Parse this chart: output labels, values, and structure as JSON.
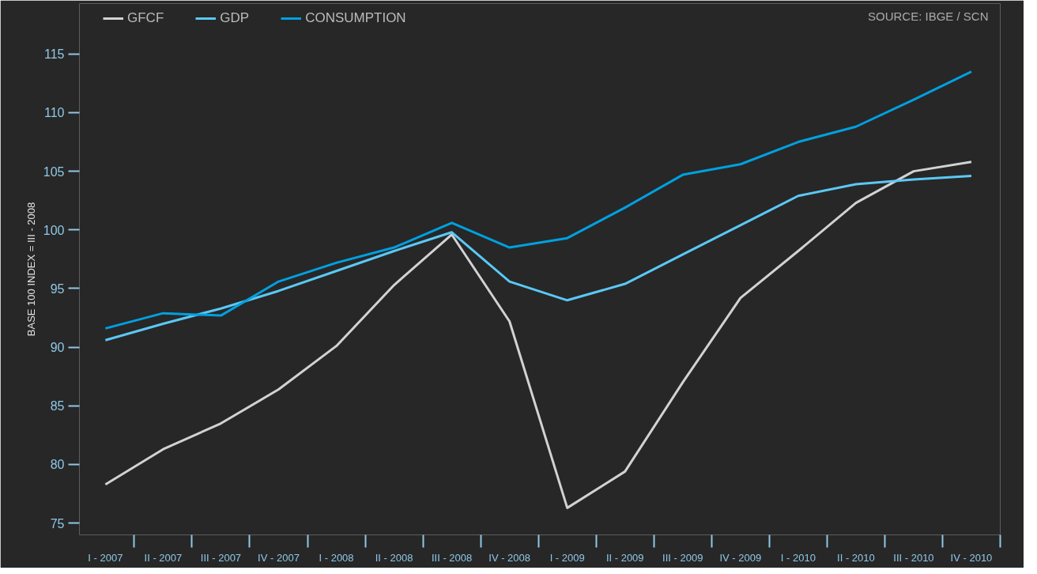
{
  "chart_data": {
    "type": "line",
    "ylabel": "BASE 100 INDEX = III - 2008",
    "annotations": [
      "SOURCE: IBGE / SCN"
    ],
    "categories": [
      "I - 2007",
      "II - 2007",
      "III - 2007",
      "IV - 2007",
      "I - 2008",
      "II - 2008",
      "III - 2008",
      "IV - 2008",
      "I - 2009",
      "II - 2009",
      "III - 2009",
      "IV - 2009",
      "I - 2010",
      "II - 2010",
      "III - 2010",
      "IV - 2010"
    ],
    "ylim": [
      74,
      119.3
    ],
    "yticks": [
      75,
      80,
      85,
      90,
      95,
      100,
      105,
      110,
      115
    ],
    "grid": false,
    "legend": "top left",
    "marker": "none",
    "line_style": "solid",
    "series": [
      {
        "name": "GFCF",
        "color": "#d1d2d4",
        "values": [
          78.3,
          81.3,
          83.5,
          86.4,
          90.1,
          95.3,
          99.6,
          92.2,
          76.3,
          79.4,
          87.0,
          94.2,
          98.2,
          102.3,
          105.0,
          105.8
        ]
      },
      {
        "name": "GDP",
        "color": "#5bc8f5",
        "values": [
          90.6,
          92.0,
          93.3,
          94.8,
          96.5,
          98.2,
          99.8,
          95.6,
          94.0,
          95.4,
          97.9,
          100.4,
          102.9,
          103.9,
          104.3,
          104.6
        ]
      },
      {
        "name": "CONSUMPTION",
        "color": "#00a0e0",
        "values": [
          91.6,
          92.9,
          92.7,
          95.6,
          97.2,
          98.5,
          100.6,
          98.5,
          99.3,
          101.9,
          104.7,
          105.6,
          107.5,
          108.8,
          111.1,
          113.5
        ]
      }
    ]
  }
}
